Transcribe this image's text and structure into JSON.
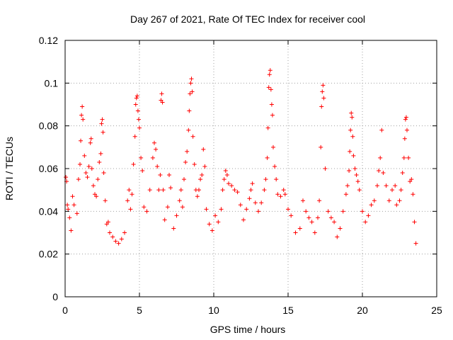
{
  "chart_data": {
    "type": "scatter",
    "title": "Day 267 of 2021, Rate Of TEC Index for receiver cool",
    "xlabel": "GPS time / hours",
    "ylabel": "ROTI / TECUs",
    "xlim": [
      0,
      25
    ],
    "ylim": [
      0,
      0.12
    ],
    "xticks": [
      0,
      5,
      10,
      15,
      20,
      25
    ],
    "xtick_labels": [
      "0",
      "5",
      "10",
      "15",
      "20",
      "25"
    ],
    "yticks": [
      0,
      0.02,
      0.04,
      0.06,
      0.08,
      0.1,
      0.12
    ],
    "ytick_labels": [
      "0",
      "0.02",
      "0.04",
      "0.06",
      "0.08",
      "0.1",
      "0.12"
    ],
    "grid": true,
    "marker": "+",
    "series": [
      {
        "name": "ROTI",
        "color": "#ff0000",
        "points": [
          [
            0.05,
            0.056
          ],
          [
            0.1,
            0.054
          ],
          [
            0.15,
            0.043
          ],
          [
            0.2,
            0.041
          ],
          [
            0.3,
            0.037
          ],
          [
            0.4,
            0.031
          ],
          [
            0.5,
            0.047
          ],
          [
            0.6,
            0.043
          ],
          [
            0.8,
            0.039
          ],
          [
            0.9,
            0.055
          ],
          [
            1.0,
            0.062
          ],
          [
            1.05,
            0.073
          ],
          [
            1.1,
            0.085
          ],
          [
            1.15,
            0.089
          ],
          [
            1.2,
            0.083
          ],
          [
            1.3,
            0.066
          ],
          [
            1.4,
            0.058
          ],
          [
            1.5,
            0.056
          ],
          [
            1.6,
            0.061
          ],
          [
            1.7,
            0.072
          ],
          [
            1.75,
            0.074
          ],
          [
            1.8,
            0.06
          ],
          [
            1.9,
            0.052
          ],
          [
            2.0,
            0.048
          ],
          [
            2.1,
            0.047
          ],
          [
            2.2,
            0.055
          ],
          [
            2.3,
            0.063
          ],
          [
            2.4,
            0.067
          ],
          [
            2.45,
            0.081
          ],
          [
            2.5,
            0.083
          ],
          [
            2.55,
            0.077
          ],
          [
            2.6,
            0.058
          ],
          [
            2.7,
            0.045
          ],
          [
            2.8,
            0.034
          ],
          [
            2.9,
            0.035
          ],
          [
            3.0,
            0.03
          ],
          [
            3.2,
            0.028
          ],
          [
            3.4,
            0.026
          ],
          [
            3.6,
            0.025
          ],
          [
            3.8,
            0.027
          ],
          [
            4.0,
            0.03
          ],
          [
            4.2,
            0.045
          ],
          [
            4.3,
            0.05
          ],
          [
            4.4,
            0.041
          ],
          [
            4.5,
            0.048
          ],
          [
            4.6,
            0.062
          ],
          [
            4.7,
            0.075
          ],
          [
            4.75,
            0.09
          ],
          [
            4.8,
            0.093
          ],
          [
            4.85,
            0.094
          ],
          [
            4.9,
            0.087
          ],
          [
            4.95,
            0.083
          ],
          [
            5.0,
            0.079
          ],
          [
            5.1,
            0.065
          ],
          [
            5.2,
            0.059
          ],
          [
            5.3,
            0.042
          ],
          [
            5.5,
            0.04
          ],
          [
            5.7,
            0.05
          ],
          [
            5.9,
            0.065
          ],
          [
            6.0,
            0.072
          ],
          [
            6.1,
            0.069
          ],
          [
            6.2,
            0.061
          ],
          [
            6.3,
            0.05
          ],
          [
            6.4,
            0.057
          ],
          [
            6.45,
            0.092
          ],
          [
            6.5,
            0.095
          ],
          [
            6.55,
            0.091
          ],
          [
            6.6,
            0.05
          ],
          [
            6.7,
            0.036
          ],
          [
            6.9,
            0.042
          ],
          [
            7.0,
            0.057
          ],
          [
            7.1,
            0.051
          ],
          [
            7.3,
            0.032
          ],
          [
            7.5,
            0.038
          ],
          [
            7.7,
            0.045
          ],
          [
            7.8,
            0.05
          ],
          [
            7.9,
            0.042
          ],
          [
            8.0,
            0.055
          ],
          [
            8.1,
            0.063
          ],
          [
            8.2,
            0.068
          ],
          [
            8.3,
            0.078
          ],
          [
            8.35,
            0.087
          ],
          [
            8.4,
            0.095
          ],
          [
            8.45,
            0.1
          ],
          [
            8.5,
            0.102
          ],
          [
            8.55,
            0.096
          ],
          [
            8.6,
            0.075
          ],
          [
            8.7,
            0.062
          ],
          [
            8.8,
            0.05
          ],
          [
            8.9,
            0.047
          ],
          [
            9.0,
            0.05
          ],
          [
            9.1,
            0.055
          ],
          [
            9.2,
            0.057
          ],
          [
            9.3,
            0.069
          ],
          [
            9.4,
            0.061
          ],
          [
            9.5,
            0.041
          ],
          [
            9.7,
            0.034
          ],
          [
            9.9,
            0.031
          ],
          [
            10.1,
            0.038
          ],
          [
            10.3,
            0.035
          ],
          [
            10.5,
            0.041
          ],
          [
            10.6,
            0.05
          ],
          [
            10.7,
            0.055
          ],
          [
            10.8,
            0.059
          ],
          [
            10.9,
            0.057
          ],
          [
            11.0,
            0.053
          ],
          [
            11.2,
            0.052
          ],
          [
            11.4,
            0.05
          ],
          [
            11.6,
            0.049
          ],
          [
            11.8,
            0.043
          ],
          [
            12.0,
            0.036
          ],
          [
            12.2,
            0.041
          ],
          [
            12.4,
            0.046
          ],
          [
            12.5,
            0.05
          ],
          [
            12.6,
            0.053
          ],
          [
            12.8,
            0.044
          ],
          [
            13.0,
            0.04
          ],
          [
            13.2,
            0.044
          ],
          [
            13.4,
            0.05
          ],
          [
            13.5,
            0.055
          ],
          [
            13.6,
            0.065
          ],
          [
            13.65,
            0.079
          ],
          [
            13.7,
            0.098
          ],
          [
            13.75,
            0.104
          ],
          [
            13.8,
            0.106
          ],
          [
            13.85,
            0.097
          ],
          [
            13.9,
            0.09
          ],
          [
            13.95,
            0.085
          ],
          [
            14.0,
            0.07
          ],
          [
            14.1,
            0.061
          ],
          [
            14.2,
            0.055
          ],
          [
            14.3,
            0.048
          ],
          [
            14.5,
            0.047
          ],
          [
            14.7,
            0.05
          ],
          [
            14.8,
            0.048
          ],
          [
            15.0,
            0.041
          ],
          [
            15.2,
            0.038
          ],
          [
            15.5,
            0.03
          ],
          [
            15.8,
            0.032
          ],
          [
            16.0,
            0.045
          ],
          [
            16.2,
            0.04
          ],
          [
            16.4,
            0.037
          ],
          [
            16.6,
            0.035
          ],
          [
            16.8,
            0.03
          ],
          [
            17.0,
            0.037
          ],
          [
            17.1,
            0.045
          ],
          [
            17.2,
            0.07
          ],
          [
            17.25,
            0.089
          ],
          [
            17.3,
            0.096
          ],
          [
            17.35,
            0.099
          ],
          [
            17.4,
            0.093
          ],
          [
            17.5,
            0.06
          ],
          [
            17.7,
            0.04
          ],
          [
            17.9,
            0.037
          ],
          [
            18.1,
            0.035
          ],
          [
            18.3,
            0.028
          ],
          [
            18.5,
            0.032
          ],
          [
            18.7,
            0.04
          ],
          [
            18.9,
            0.048
          ],
          [
            19.0,
            0.052
          ],
          [
            19.1,
            0.059
          ],
          [
            19.15,
            0.068
          ],
          [
            19.2,
            0.078
          ],
          [
            19.25,
            0.086
          ],
          [
            19.3,
            0.084
          ],
          [
            19.35,
            0.075
          ],
          [
            19.4,
            0.066
          ],
          [
            19.5,
            0.06
          ],
          [
            19.6,
            0.057
          ],
          [
            19.7,
            0.054
          ],
          [
            19.8,
            0.05
          ],
          [
            20.0,
            0.04
          ],
          [
            20.2,
            0.035
          ],
          [
            20.4,
            0.038
          ],
          [
            20.6,
            0.043
          ],
          [
            20.8,
            0.045
          ],
          [
            21.0,
            0.052
          ],
          [
            21.1,
            0.059
          ],
          [
            21.2,
            0.065
          ],
          [
            21.3,
            0.078
          ],
          [
            21.4,
            0.058
          ],
          [
            21.6,
            0.052
          ],
          [
            21.8,
            0.045
          ],
          [
            22.0,
            0.05
          ],
          [
            22.2,
            0.052
          ],
          [
            22.3,
            0.043
          ],
          [
            22.5,
            0.045
          ],
          [
            22.6,
            0.05
          ],
          [
            22.7,
            0.058
          ],
          [
            22.8,
            0.065
          ],
          [
            22.85,
            0.074
          ],
          [
            22.9,
            0.083
          ],
          [
            22.95,
            0.084
          ],
          [
            23.0,
            0.078
          ],
          [
            23.1,
            0.065
          ],
          [
            23.2,
            0.054
          ],
          [
            23.3,
            0.055
          ],
          [
            23.4,
            0.048
          ],
          [
            23.5,
            0.035
          ],
          [
            23.6,
            0.025
          ]
        ]
      }
    ]
  }
}
